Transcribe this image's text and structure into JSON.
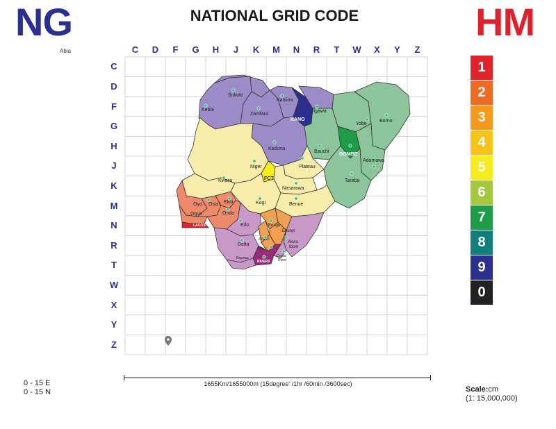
{
  "header": {
    "left_logo": "NG",
    "region_label": "Abia",
    "title": "NATIONAL GRID CODE",
    "right_logo": "HM"
  },
  "grid": {
    "columns": [
      "C",
      "D",
      "F",
      "G",
      "H",
      "J",
      "K",
      "M",
      "N",
      "R",
      "T",
      "W",
      "X",
      "Y",
      "Z"
    ],
    "rows": [
      "C",
      "D",
      "F",
      "G",
      "H",
      "J",
      "K",
      "M",
      "N",
      "R",
      "T",
      "W",
      "X",
      "Y",
      "Z"
    ]
  },
  "legend": [
    {
      "label": "1",
      "color": "#e2232a"
    },
    {
      "label": "2",
      "color": "#ef6a22"
    },
    {
      "label": "3",
      "color": "#f59a1b"
    },
    {
      "label": "4",
      "color": "#f9c417"
    },
    {
      "label": "5",
      "color": "#f6ec1b"
    },
    {
      "label": "6",
      "color": "#a5c93d"
    },
    {
      "label": "7",
      "color": "#1e9c48"
    },
    {
      "label": "8",
      "color": "#137f7c"
    },
    {
      "label": "9",
      "color": "#2b2f8f"
    },
    {
      "label": "0",
      "color": "#222222"
    }
  ],
  "map": {
    "states": {
      "sokoto": "Sokoto",
      "kebbi": "Kebbi",
      "katsina": "Katsina",
      "zamfara": "Zamfara",
      "jigawa": "Jigawa",
      "kano": "KANO",
      "yobe": "Yobe",
      "borno": "Borno",
      "bauchi": "Bauchi",
      "gombe": "GOMBE",
      "kaduna": "Kaduna",
      "adamawa": "Adamawa",
      "niger": "Niger",
      "plateau": "Plateau",
      "fct": "FCT",
      "kwara": "Kwara",
      "nasarawa": "Nasarawa",
      "taraba": "Taraba",
      "oyo": "Oyo",
      "osun": "Osun",
      "ekiti": "Ekiti",
      "kogi": "Kogi",
      "benue": "Benue",
      "ogun": "Ogun",
      "ondo": "Ondo",
      "lagos": "LAGOS",
      "edo": "Edo",
      "enugu": "Enugu",
      "ebonyi": "Ebonyi",
      "delta": "Delta",
      "anambra": "Anam",
      "imo": "Imo",
      "akwa_ibom": "Akwa\nIbom",
      "akwa_ibom_line1": "Akwa",
      "akwa_ibom_line2": "Ibom",
      "bayelsa": "Bayelsa",
      "rivers": "RIVERS",
      "cross_river_line1": "Cross",
      "cross_river_line2": "River"
    },
    "colors": {
      "north_west": "#9b8cc8",
      "kano": "#2b2f8f",
      "north_east": "#8cc49b",
      "gombe": "#1e9c48",
      "middle_belt": "#f7ecaa",
      "fct": "#f6ec1b",
      "south_west": "#ee8a6a",
      "lagos": "#e2232a",
      "south_south": "#c898c8",
      "south_east": "#f0a050",
      "rivers": "#9a2a7a"
    }
  },
  "scale": {
    "distance_text": "1655Km/1655000m (15degree' /1hr /60min /3600sec)",
    "coord_e": "0 - 15 E",
    "coord_n": "0 - 15 N",
    "scale_label": "Scale:",
    "scale_unit": "cm",
    "scale_ratio": "(1: 15,000,000)"
  }
}
